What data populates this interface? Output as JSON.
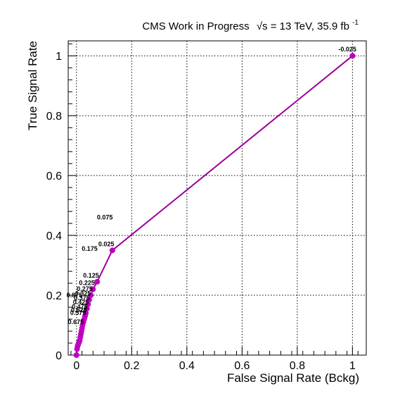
{
  "chart_data": {
    "type": "line",
    "title": "CMS Work in Progress",
    "title_energy": "√s = 13 TeV, 35.9 fb",
    "title_energy_sup": "-1",
    "xlabel": "False Signal Rate (Bckg)",
    "ylabel": "True Signal Rate",
    "xlim": [
      -0.03,
      1.05
    ],
    "ylim": [
      0,
      1.05
    ],
    "xticks": [
      0,
      0.2,
      0.4,
      0.6,
      0.8,
      1
    ],
    "xtick_labels": [
      "0",
      "0.2",
      "0.4",
      "0.6",
      "0.8",
      "1"
    ],
    "yticks": [
      0,
      0.2,
      0.4,
      0.6,
      0.8,
      1
    ],
    "ytick_labels": [
      "0",
      "0.2",
      "0.4",
      "0.6",
      "0.8",
      "1"
    ],
    "grid": true,
    "line_color": "#9b009b",
    "marker_color": "#c000c0",
    "series": [
      {
        "x": [
          1.0,
          0.13,
          0.075,
          0.06,
          0.052,
          0.046,
          0.042,
          0.038,
          0.034,
          0.031,
          0.028,
          0.025,
          0.022,
          0.02,
          0.018,
          0.016,
          0.014,
          0.012,
          0.01,
          0.008,
          0.006,
          0.004,
          0.002,
          0.0
        ],
        "y": [
          1.0,
          0.35,
          0.245,
          0.22,
          0.2,
          0.185,
          0.17,
          0.155,
          0.14,
          0.13,
          0.12,
          0.11,
          0.1,
          0.09,
          0.08,
          0.07,
          0.06,
          0.05,
          0.045,
          0.04,
          0.035,
          0.03,
          0.02,
          0.0
        ]
      }
    ],
    "annotations": [
      {
        "text": "-0.025",
        "x": 1.0,
        "y": 1.0
      },
      {
        "text": "0.025",
        "x": 0.13,
        "y": 0.35
      },
      {
        "text": "0.075",
        "x": 0.13,
        "y": 0.35
      },
      {
        "text": "0.125",
        "x": 0.075,
        "y": 0.245
      },
      {
        "text": "0.175",
        "x": 0.075,
        "y": 0.245
      },
      {
        "text": "0.225",
        "x": 0.06,
        "y": 0.22
      },
      {
        "text": "0.275",
        "x": 0.052,
        "y": 0.2
      },
      {
        "text": "0.325",
        "x": 0.046,
        "y": 0.185
      },
      {
        "text": "0.375",
        "x": 0.042,
        "y": 0.17
      },
      {
        "text": "0.425",
        "x": 0.038,
        "y": 0.155
      },
      {
        "text": "0.475",
        "x": 0.034,
        "y": 0.14
      },
      {
        "text": "0.525",
        "x": 0.031,
        "y": 0.13
      },
      {
        "text": "0.575",
        "x": 0.028,
        "y": 0.12
      },
      {
        "text": "0.675",
        "x": 0.02,
        "y": 0.09
      },
      {
        "text": "0.875",
        "x": 0.02,
        "y": 0.09
      }
    ]
  }
}
